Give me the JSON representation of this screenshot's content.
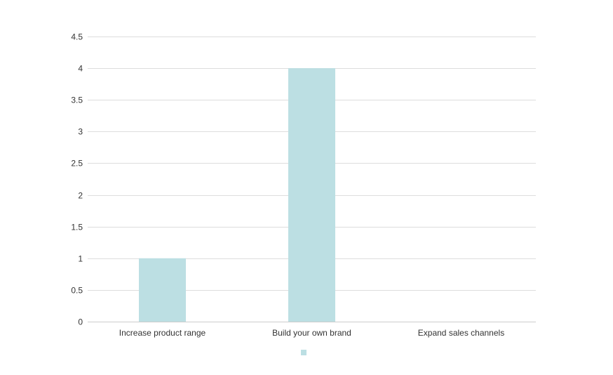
{
  "chart_data": {
    "type": "bar",
    "categories": [
      "Increase product range",
      "Build your own brand",
      "Expand sales channels"
    ],
    "series": [
      {
        "values": [
          1,
          4,
          0
        ]
      }
    ],
    "title": "",
    "xlabel": "",
    "ylabel": "",
    "ylim": [
      0,
      4.5
    ],
    "yticks": [
      0,
      0.5,
      1,
      1.5,
      2,
      2.5,
      3,
      3.5,
      4,
      4.5
    ],
    "ytick_labels": [
      "0",
      "0.5",
      "1",
      "1.5",
      "2",
      "2.5",
      "3",
      "3.5",
      "4",
      "4.5"
    ],
    "grid": true,
    "legend": "bottom-center",
    "colors": {
      "bar": "#bcdfe3",
      "grid": "#dddddd",
      "axis": "#cccccc",
      "text": "#333333"
    }
  }
}
